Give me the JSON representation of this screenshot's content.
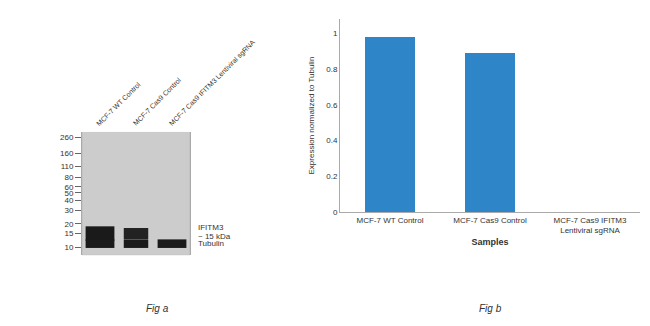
{
  "chart_data": [
    {
      "type": "blot",
      "title": "Fig a",
      "categories": [
        "MCF-7 WT Control",
        "MCF-7 Cas9 Control",
        "MCF-7 Cas9 IFITM3 Lentiviral sgRNA"
      ],
      "log": "y",
      "ylim": [
        8,
        300
      ],
      "yticks": [
        260,
        160,
        110,
        80,
        60,
        50,
        40,
        30,
        20,
        15,
        10
      ],
      "annotations": [
        "IFITM3",
        "~ 15 kDa",
        "Tubulin"
      ],
      "color": "#cccccc",
      "grid": false
    },
    {
      "type": "bar",
      "title": "Fig b",
      "categories": [
        "MCF-7 WT Control",
        "MCF-7 Cas9 Control",
        "MCF-7 Cas9 IFITM3\nLentiviral sgRNA"
      ],
      "values": [
        0.98,
        0.89,
        0.0
      ],
      "color": "#2e86c8",
      "xlabel": "Samples",
      "ylabel": "Expression normalized to Tubulin",
      "ylim": [
        0,
        1.08
      ],
      "yticks": [
        0,
        0.2,
        0.4,
        0.6,
        0.8,
        1.0
      ],
      "grid": false
    }
  ]
}
